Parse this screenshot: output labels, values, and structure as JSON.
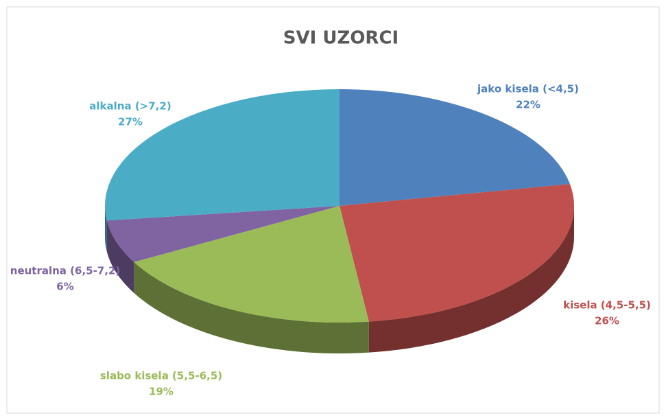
{
  "chart_data": {
    "type": "pie",
    "title": "SVI UZORCI",
    "categories": [
      "jako kisela (<4,5)",
      "kisela (4,5-5,5)",
      "slabo kisela (5,5-6,5)",
      "neutralna (6,5-7,2)",
      "alkalna (>7,2)"
    ],
    "values": [
      22,
      26,
      19,
      6,
      27
    ],
    "value_labels": [
      "22%",
      "26%",
      "19%",
      "6%",
      "27%"
    ],
    "colors": [
      "#4f81bd",
      "#c0504d",
      "#9bbb59",
      "#8064a2",
      "#4bacc6"
    ]
  }
}
